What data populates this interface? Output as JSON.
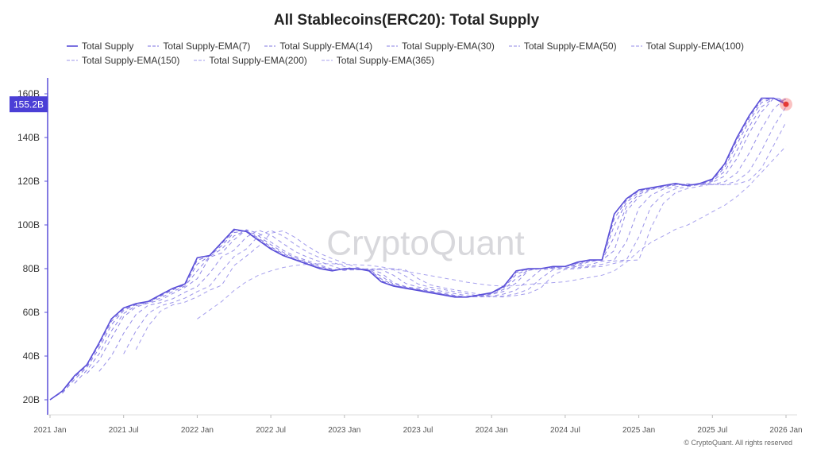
{
  "chart_data": {
    "type": "line",
    "title": "All Stablecoins(ERC20): Total Supply",
    "watermark": "CryptoQuant",
    "footer": "© CryptoQuant. All rights reserved",
    "x": [
      "2021-01",
      "2021-02",
      "2021-03",
      "2021-04",
      "2021-05",
      "2021-06",
      "2021-07",
      "2021-08",
      "2021-09",
      "2021-10",
      "2021-11",
      "2021-12",
      "2022-01",
      "2022-02",
      "2022-03",
      "2022-04",
      "2022-05",
      "2022-06",
      "2022-07",
      "2022-08",
      "2022-09",
      "2022-10",
      "2022-11",
      "2022-12",
      "2023-01",
      "2023-02",
      "2023-03",
      "2023-04",
      "2023-05",
      "2023-06",
      "2023-07",
      "2023-08",
      "2023-09",
      "2023-10",
      "2023-11",
      "2023-12",
      "2024-01",
      "2024-02",
      "2024-03",
      "2024-04",
      "2024-05",
      "2024-06",
      "2024-07",
      "2024-08",
      "2024-09",
      "2024-10",
      "2024-11",
      "2024-12",
      "2025-01",
      "2025-02",
      "2025-03",
      "2025-04",
      "2025-05",
      "2025-06",
      "2025-07",
      "2025-08",
      "2025-09",
      "2025-10",
      "2025-11",
      "2025-12",
      "2026-01"
    ],
    "xticks": [
      {
        "value": "2021-01",
        "label": "2021 Jan"
      },
      {
        "value": "2021-07",
        "label": "2021 Jul"
      },
      {
        "value": "2022-01",
        "label": "2022 Jan"
      },
      {
        "value": "2022-07",
        "label": "2022 Jul"
      },
      {
        "value": "2023-01",
        "label": "2023 Jan"
      },
      {
        "value": "2023-07",
        "label": "2023 Jul"
      },
      {
        "value": "2024-01",
        "label": "2024 Jan"
      },
      {
        "value": "2024-07",
        "label": "2024 Jul"
      },
      {
        "value": "2025-01",
        "label": "2025 Jan"
      },
      {
        "value": "2025-07",
        "label": "2025 Jul"
      },
      {
        "value": "2026-01",
        "label": "2026 Jan"
      }
    ],
    "ylim": [
      14,
      166
    ],
    "yticks": [
      {
        "value": 20,
        "label": "20B"
      },
      {
        "value": 40,
        "label": "40B"
      },
      {
        "value": 60,
        "label": "60B"
      },
      {
        "value": 80,
        "label": "80B"
      },
      {
        "value": 100,
        "label": "100B"
      },
      {
        "value": 120,
        "label": "120B"
      },
      {
        "value": 140,
        "label": "140B"
      },
      {
        "value": 160,
        "label": "160B"
      }
    ],
    "last_label": {
      "value": 155.2,
      "label": "155.2B"
    },
    "series": [
      {
        "name": "Total Supply",
        "color": "#5a4fd8",
        "dashed": false,
        "values": [
          20,
          24,
          31,
          36,
          46,
          57,
          62,
          64,
          65,
          68,
          71,
          73,
          85,
          86,
          92,
          98,
          97,
          93,
          89,
          86,
          84,
          82,
          80,
          79,
          80,
          80,
          79,
          74,
          72,
          71,
          70,
          69,
          68,
          67,
          67,
          68,
          69,
          72,
          79,
          80,
          80,
          81,
          81,
          83,
          84,
          84,
          105,
          112,
          116,
          117,
          118,
          119,
          118,
          119,
          121,
          128,
          140,
          150,
          158,
          158,
          155.2
        ]
      },
      {
        "name": "Total Supply-EMA(7)",
        "color": "#7b70e0",
        "dashed": true,
        "values": [
          20,
          23.6,
          30.3,
          35.5,
          45,
          55.9,
          61.5,
          63.8,
          64.9,
          67.7,
          70.7,
          72.8,
          83.8,
          85.9,
          91.4,
          97.4,
          97.1,
          93.4,
          89.4,
          86.3,
          84.2,
          82.2,
          80.2,
          79.1,
          79.9,
          80,
          79.1,
          74.5,
          72.2,
          71.1,
          70.1,
          69.1,
          68.1,
          67.1,
          67,
          67.9,
          68.9,
          71.7,
          78.3,
          79.9,
          80,
          80.9,
          81,
          82.8,
          83.9,
          84,
          102.9,
          111.3,
          115.6,
          116.9,
          117.9,
          118.9,
          118.1,
          118.9,
          120.8,
          127.3,
          138.8,
          149,
          157.2,
          158,
          155.5
        ]
      },
      {
        "name": "Total Supply-EMA(14)",
        "color": "#8278e2",
        "dashed": true,
        "values": [
          null,
          23,
          29.3,
          34.8,
          43.5,
          54.3,
          60.8,
          63.5,
          64.8,
          67.3,
          70.3,
          72.5,
          82,
          85.8,
          90.5,
          96.5,
          97.3,
          94,
          90,
          86.8,
          84.5,
          82.5,
          80.5,
          79.3,
          79.8,
          80,
          79.3,
          75.3,
          72.5,
          71.3,
          70.3,
          69.3,
          68.3,
          67.3,
          67,
          67.8,
          68.8,
          71.3,
          77.3,
          79.8,
          80,
          80.8,
          81,
          82.5,
          83.8,
          84,
          99.8,
          110.3,
          115,
          116.8,
          117.8,
          118.8,
          118.3,
          118.8,
          120.5,
          126.3,
          137,
          147.5,
          156,
          158,
          155.9
        ]
      },
      {
        "name": "Total Supply-EMA(30)",
        "color": "#8a80e4",
        "dashed": true,
        "values": [
          null,
          null,
          27.5,
          33.5,
          41,
          51.5,
          59.5,
          63,
          64.5,
          66.5,
          69.5,
          72,
          79,
          85.5,
          89,
          95,
          97.5,
          95,
          91,
          87.5,
          85,
          83,
          81,
          79.5,
          79.5,
          80,
          79.5,
          76.5,
          73,
          71.5,
          70.5,
          69.5,
          68.5,
          67.5,
          67,
          67.5,
          68.5,
          70.5,
          75.5,
          79.5,
          80,
          80.5,
          81,
          82,
          83.5,
          84,
          94.5,
          108.5,
          114,
          116.5,
          117.5,
          118.5,
          118.5,
          118.5,
          120,
          124.5,
          134,
          145,
          154,
          158,
          156.6
        ]
      },
      {
        "name": "Total Supply-EMA(50)",
        "color": "#9088e6",
        "dashed": true,
        "values": [
          null,
          null,
          null,
          32,
          38,
          48.2,
          58,
          62.4,
          64.2,
          65.6,
          68.6,
          71.4,
          75.4,
          85.2,
          87.2,
          93.2,
          97.8,
          96.2,
          92.2,
          88.4,
          85.6,
          83.6,
          81.6,
          79.8,
          79.2,
          80,
          79.8,
          78,
          73.6,
          71.8,
          70.8,
          69.8,
          68.8,
          67.8,
          67,
          67.2,
          68.2,
          69.6,
          73.4,
          79.2,
          80,
          80.2,
          81,
          81.4,
          83.2,
          84,
          88.2,
          106.4,
          112.8,
          116.2,
          117.2,
          118.2,
          118.8,
          118.2,
          119.4,
          122.4,
          130.4,
          142,
          151.6,
          158,
          157.4
        ]
      },
      {
        "name": "Total Supply-EMA(100)",
        "color": "#968ee8",
        "dashed": true,
        "values": [
          null,
          null,
          null,
          null,
          33,
          40,
          50.4,
          59,
          63.2,
          64.4,
          66.2,
          69.2,
          71.8,
          77.8,
          85.4,
          88.4,
          94.4,
          97.6,
          95.4,
          91.4,
          87.8,
          85.2,
          83.2,
          81.2,
          79.4,
          79.4,
          80,
          79.6,
          77,
          73.2,
          71.6,
          70.6,
          69.6,
          68.6,
          67.6,
          67,
          67.4,
          68.4,
          70.2,
          74.8,
          79.4,
          80,
          80.4,
          81,
          81.8,
          83.4,
          84,
          92.4,
          107.8,
          113.6,
          116.4,
          117.4,
          118.4,
          118.6,
          118.4,
          119.8,
          123.8,
          132.8,
          144,
          153.2,
          158
        ]
      },
      {
        "name": "Total Supply-EMA(150)",
        "color": "#9c95ea",
        "dashed": true,
        "values": [
          null,
          null,
          null,
          null,
          null,
          null,
          41,
          51.5,
          59.5,
          63,
          64.5,
          66.5,
          69.5,
          72,
          79,
          85.5,
          89,
          95,
          97.5,
          95,
          91,
          87.5,
          85,
          83,
          81,
          79.5,
          79.5,
          80,
          79.5,
          76.5,
          73,
          71.5,
          70.5,
          69.5,
          68.5,
          67.5,
          67,
          67.5,
          68.5,
          70.5,
          75.5,
          79.5,
          80,
          80.5,
          81,
          82,
          83.5,
          84,
          94.5,
          108.5,
          114,
          116.5,
          117.5,
          118.5,
          118.5,
          118.5,
          120,
          124.5,
          134,
          145,
          154
        ]
      },
      {
        "name": "Total Supply-EMA(200)",
        "color": "#a29bec",
        "dashed": true,
        "values": [
          null,
          null,
          null,
          null,
          null,
          null,
          null,
          43,
          53.7,
          60.5,
          63.4,
          64.7,
          67.1,
          70.1,
          72.4,
          81.4,
          85.7,
          90.2,
          96.2,
          97.3,
          94.2,
          90.2,
          86.9,
          84.6,
          82.6,
          80.6,
          79.3,
          79.7,
          80,
          79.3,
          75.5,
          72.6,
          71.3,
          70.3,
          69.3,
          68.3,
          67.3,
          67,
          67.7,
          68.7,
          71.1,
          76.9,
          79.7,
          80,
          80.7,
          81,
          82.4,
          83.7,
          84,
          98.7,
          109.9,
          114.8,
          116.7,
          117.7,
          118.7,
          118.3,
          118.7,
          120.4,
          125.9,
          136.4,
          147
        ]
      },
      {
        "name": "Total Supply-EMA(365)",
        "color": "#a8a2ee",
        "dashed": true,
        "values": [
          null,
          null,
          null,
          null,
          null,
          null,
          null,
          null,
          null,
          null,
          null,
          null,
          57,
          61,
          65,
          70,
          74,
          77,
          79,
          80.5,
          81.5,
          82,
          82.2,
          82.2,
          82,
          81.8,
          81.5,
          80.8,
          79.8,
          78.8,
          77.8,
          76.8,
          75.8,
          74.8,
          73.8,
          73,
          72.3,
          72,
          72.2,
          72.8,
          73.2,
          73.6,
          74,
          75,
          76,
          77,
          79,
          83,
          88,
          92,
          95,
          98,
          100,
          103,
          106,
          109,
          113,
          118,
          124,
          130,
          136
        ]
      }
    ]
  }
}
